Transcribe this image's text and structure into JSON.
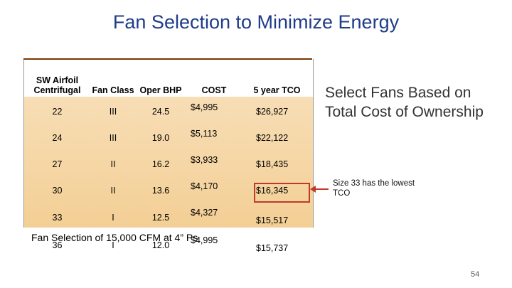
{
  "title": "Fan Selection to Minimize Energy",
  "table": {
    "headers": [
      "SW Airfoil Centrifugal",
      "Fan Class",
      "Oper BHP",
      "COST",
      "5 year TCO"
    ],
    "rows": [
      [
        "22",
        "III",
        "24.5",
        "$4,995",
        "$26,927"
      ],
      [
        "24",
        "III",
        "19.0",
        "$5,113",
        "$22,122"
      ],
      [
        "27",
        "II",
        "16.2",
        "$3,933",
        "$18,435"
      ],
      [
        "30",
        "II",
        "13.6",
        "$4,170",
        "$16,345"
      ],
      [
        "33",
        "I",
        "12.5",
        "$4,327",
        "$15,517"
      ],
      [
        "36",
        "I",
        "12.0",
        "$4,995",
        "$15,737"
      ]
    ]
  },
  "caption": "Fan Selection of 15,000 CFM at 4” Ps",
  "side_text": "Select Fans Based on Total Cost of Ownership",
  "note": "Size 33 has the lowest TCO",
  "page_number": "54",
  "colors": {
    "title": "#1f3c88",
    "table_fill": "#f3cf95",
    "highlight": "#c0392b"
  }
}
